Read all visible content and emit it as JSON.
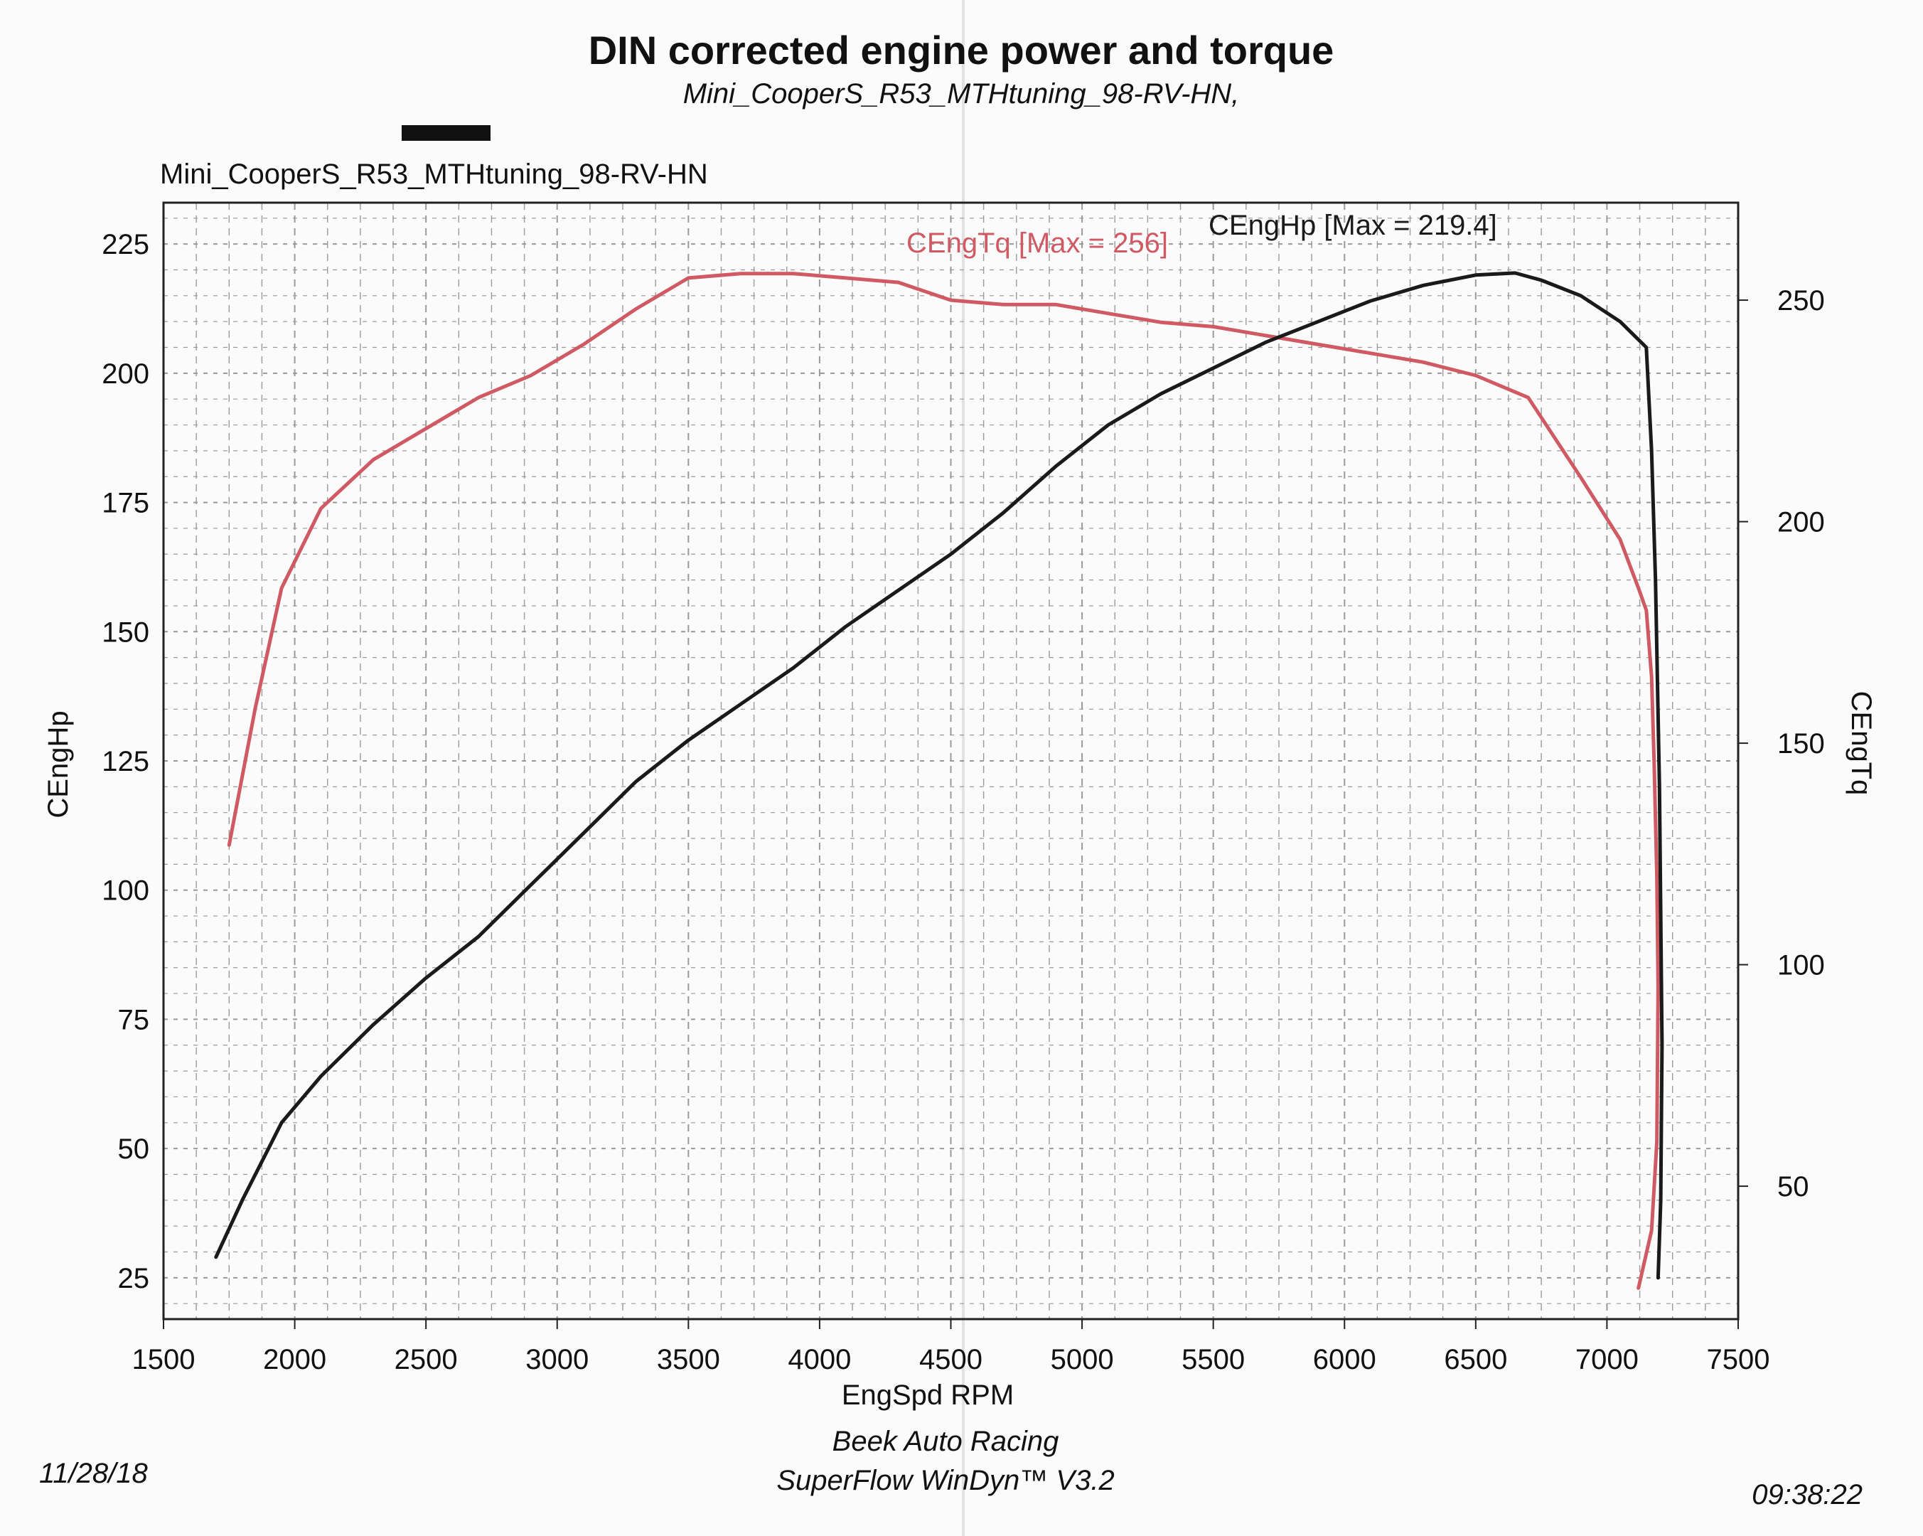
{
  "chart_data": {
    "type": "line",
    "title": "DIN corrected engine power and torque",
    "subtitle": "Mini_CooperS_R53_MTHtuning_98-RV-HN,",
    "run_name": "Mini_CooperS_R53_MTHtuning_98-RV-HN",
    "xlabel": "EngSpd RPM",
    "ylabel_left": "CEngHp",
    "ylabel_right": "CEngTq",
    "xlim": [
      1500,
      7500
    ],
    "ylim_left": [
      17,
      233
    ],
    "ylim_right": [
      20,
      272
    ],
    "x_ticks": [
      "1500",
      "2000",
      "2500",
      "3000",
      "3500",
      "4000",
      "4500",
      "5000",
      "5500",
      "6000",
      "6500",
      "7000",
      "7500"
    ],
    "y_left_ticks": [
      "25",
      "50",
      "75",
      "100",
      "125",
      "150",
      "175",
      "200",
      "225"
    ],
    "y_right_ticks": [
      "50",
      "100",
      "150",
      "200",
      "250"
    ],
    "grid": true,
    "series": [
      {
        "name": "CEngTq",
        "legend": "CEngTq [Max = 256]",
        "axis": "right",
        "color": "#d05a63",
        "x": [
          1750,
          1850,
          1950,
          2100,
          2300,
          2500,
          2700,
          2900,
          3100,
          3300,
          3500,
          3700,
          3900,
          4100,
          4300,
          4500,
          4700,
          4900,
          5100,
          5300,
          5500,
          5700,
          5900,
          6100,
          6300,
          6500,
          6700,
          6900,
          7050,
          7120,
          7150,
          7170,
          7180,
          7190,
          7195,
          7190,
          7170,
          7120
        ],
        "values": [
          127,
          158,
          185,
          203,
          214,
          221,
          228,
          233,
          240,
          248,
          255,
          256,
          256,
          255,
          254,
          250,
          249,
          249,
          247,
          245,
          244,
          242,
          240,
          238,
          236,
          233,
          228,
          210,
          196,
          185,
          180,
          165,
          145,
          120,
          95,
          60,
          40,
          27
        ]
      },
      {
        "name": "CEngHp",
        "legend": "CEngHp [Max = 219.4]",
        "axis": "left",
        "color": "#1a1a1a",
        "x": [
          1700,
          1800,
          1950,
          2100,
          2300,
          2500,
          2700,
          2900,
          3100,
          3300,
          3500,
          3700,
          3900,
          4100,
          4300,
          4500,
          4700,
          4900,
          5100,
          5300,
          5500,
          5700,
          5900,
          6100,
          6300,
          6500,
          6650,
          6750,
          6900,
          7050,
          7150,
          7170,
          7185,
          7200,
          7210,
          7205,
          7195
        ],
        "values": [
          29,
          40,
          55,
          64,
          74,
          83,
          91,
          101,
          111,
          121,
          129,
          136,
          143,
          151,
          158,
          165,
          173,
          182,
          190,
          196,
          201,
          206,
          210,
          214,
          217,
          219,
          219.4,
          218,
          215,
          210,
          205,
          185,
          160,
          120,
          70,
          40,
          25
        ]
      }
    ]
  },
  "footer": {
    "date": "11/28/18",
    "shop": "Beek Auto Racing",
    "software": "SuperFlow WinDyn™ V3.2",
    "time": "09:38:22"
  },
  "colors": {
    "torque": "#d05a63",
    "power": "#1a1a1a",
    "grid": "#9a9a9a"
  }
}
